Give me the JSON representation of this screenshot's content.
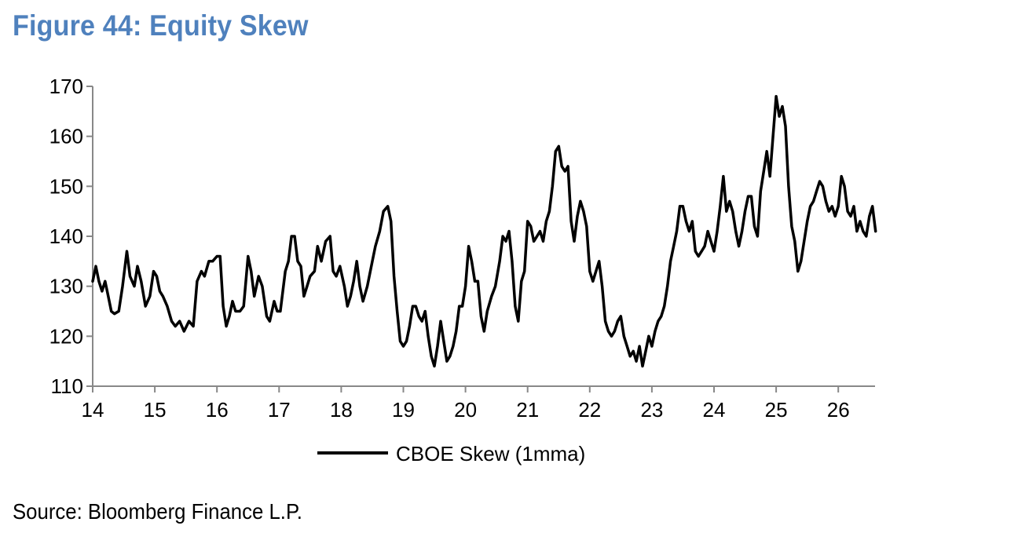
{
  "figure_title": "Figure 44: Equity Skew",
  "source_note": "Source: Bloomberg Finance L.P.",
  "chart_data": {
    "type": "line",
    "title": "",
    "xlabel": "",
    "ylabel": "",
    "xlim": [
      14,
      26.6
    ],
    "ylim": [
      110,
      170
    ],
    "x_ticks": [
      14,
      15,
      16,
      17,
      18,
      19,
      20,
      21,
      22,
      23,
      24,
      25,
      26
    ],
    "y_ticks": [
      110,
      120,
      130,
      140,
      150,
      160,
      170
    ],
    "grid": false,
    "legend_position": "bottom-center",
    "series": [
      {
        "name": "CBOE Skew (1mma)",
        "color": "#000000",
        "points": [
          [
            14.0,
            131
          ],
          [
            14.05,
            134
          ],
          [
            14.1,
            131
          ],
          [
            14.15,
            129
          ],
          [
            14.2,
            131
          ],
          [
            14.25,
            128
          ],
          [
            14.3,
            125
          ],
          [
            14.35,
            124.5
          ],
          [
            14.42,
            125
          ],
          [
            14.48,
            130
          ],
          [
            14.55,
            137
          ],
          [
            14.6,
            132
          ],
          [
            14.67,
            130
          ],
          [
            14.72,
            134
          ],
          [
            14.78,
            131
          ],
          [
            14.85,
            126
          ],
          [
            14.92,
            128
          ],
          [
            14.98,
            133
          ],
          [
            15.03,
            132
          ],
          [
            15.08,
            129
          ],
          [
            15.13,
            128
          ],
          [
            15.2,
            126
          ],
          [
            15.27,
            123
          ],
          [
            15.33,
            122
          ],
          [
            15.4,
            123
          ],
          [
            15.47,
            121
          ],
          [
            15.55,
            123
          ],
          [
            15.62,
            122
          ],
          [
            15.68,
            131
          ],
          [
            15.75,
            133
          ],
          [
            15.8,
            132
          ],
          [
            15.87,
            135
          ],
          [
            15.93,
            135
          ],
          [
            16.0,
            136
          ],
          [
            16.05,
            136
          ],
          [
            16.1,
            126
          ],
          [
            16.15,
            122
          ],
          [
            16.2,
            124
          ],
          [
            16.25,
            127
          ],
          [
            16.3,
            125
          ],
          [
            16.37,
            125
          ],
          [
            16.43,
            126
          ],
          [
            16.5,
            136
          ],
          [
            16.55,
            133
          ],
          [
            16.6,
            128
          ],
          [
            16.67,
            132
          ],
          [
            16.73,
            130
          ],
          [
            16.8,
            124
          ],
          [
            16.85,
            123
          ],
          [
            16.92,
            127
          ],
          [
            16.97,
            125
          ],
          [
            17.02,
            125
          ],
          [
            17.1,
            133
          ],
          [
            17.15,
            135
          ],
          [
            17.2,
            140
          ],
          [
            17.25,
            140
          ],
          [
            17.3,
            135
          ],
          [
            17.35,
            134
          ],
          [
            17.4,
            128
          ],
          [
            17.45,
            130
          ],
          [
            17.5,
            132
          ],
          [
            17.57,
            133
          ],
          [
            17.62,
            138
          ],
          [
            17.68,
            135
          ],
          [
            17.75,
            139
          ],
          [
            17.82,
            140
          ],
          [
            17.87,
            133
          ],
          [
            17.92,
            132
          ],
          [
            17.98,
            134
          ],
          [
            18.05,
            130
          ],
          [
            18.1,
            126
          ],
          [
            18.15,
            128
          ],
          [
            18.2,
            131
          ],
          [
            18.25,
            135
          ],
          [
            18.3,
            130
          ],
          [
            18.35,
            127
          ],
          [
            18.42,
            130
          ],
          [
            18.5,
            135
          ],
          [
            18.55,
            138
          ],
          [
            18.62,
            141
          ],
          [
            18.68,
            145
          ],
          [
            18.75,
            146
          ],
          [
            18.8,
            143
          ],
          [
            18.85,
            132
          ],
          [
            18.9,
            125
          ],
          [
            18.95,
            119
          ],
          [
            19.0,
            118
          ],
          [
            19.05,
            119
          ],
          [
            19.1,
            122
          ],
          [
            19.15,
            126
          ],
          [
            19.2,
            126
          ],
          [
            19.25,
            124
          ],
          [
            19.3,
            123
          ],
          [
            19.35,
            125
          ],
          [
            19.4,
            120
          ],
          [
            19.45,
            116
          ],
          [
            19.5,
            114
          ],
          [
            19.55,
            118
          ],
          [
            19.6,
            123
          ],
          [
            19.65,
            119
          ],
          [
            19.7,
            115
          ],
          [
            19.75,
            116
          ],
          [
            19.8,
            118
          ],
          [
            19.85,
            121
          ],
          [
            19.9,
            126
          ],
          [
            19.95,
            126
          ],
          [
            20.0,
            130
          ],
          [
            20.05,
            138
          ],
          [
            20.1,
            135
          ],
          [
            20.15,
            131
          ],
          [
            20.2,
            131
          ],
          [
            20.25,
            124
          ],
          [
            20.3,
            121
          ],
          [
            20.35,
            125
          ],
          [
            20.42,
            128
          ],
          [
            20.48,
            130
          ],
          [
            20.55,
            135
          ],
          [
            20.6,
            140
          ],
          [
            20.65,
            139
          ],
          [
            20.7,
            141
          ],
          [
            20.75,
            135
          ],
          [
            20.8,
            126
          ],
          [
            20.85,
            123
          ],
          [
            20.9,
            131
          ],
          [
            20.95,
            133
          ],
          [
            21.0,
            143
          ],
          [
            21.05,
            142
          ],
          [
            21.1,
            139
          ],
          [
            21.15,
            140
          ],
          [
            21.2,
            141
          ],
          [
            21.25,
            139
          ],
          [
            21.3,
            143
          ],
          [
            21.35,
            145
          ],
          [
            21.4,
            150
          ],
          [
            21.45,
            157
          ],
          [
            21.5,
            158
          ],
          [
            21.55,
            154
          ],
          [
            21.6,
            153
          ],
          [
            21.65,
            154
          ],
          [
            21.7,
            143
          ],
          [
            21.75,
            139
          ],
          [
            21.8,
            144
          ],
          [
            21.85,
            147
          ],
          [
            21.9,
            145
          ],
          [
            21.95,
            142
          ],
          [
            22.0,
            133
          ],
          [
            22.05,
            131
          ],
          [
            22.1,
            133
          ],
          [
            22.15,
            135
          ],
          [
            22.2,
            130
          ],
          [
            22.25,
            123
          ],
          [
            22.3,
            121
          ],
          [
            22.35,
            120
          ],
          [
            22.4,
            121
          ],
          [
            22.45,
            123
          ],
          [
            22.5,
            124
          ],
          [
            22.55,
            120
          ],
          [
            22.6,
            118
          ],
          [
            22.65,
            116
          ],
          [
            22.7,
            117
          ],
          [
            22.75,
            115
          ],
          [
            22.8,
            118
          ],
          [
            22.85,
            114
          ],
          [
            22.9,
            117
          ],
          [
            22.95,
            120
          ],
          [
            23.0,
            118
          ],
          [
            23.05,
            121
          ],
          [
            23.1,
            123
          ],
          [
            23.15,
            124
          ],
          [
            23.2,
            126
          ],
          [
            23.25,
            130
          ],
          [
            23.3,
            135
          ],
          [
            23.35,
            138
          ],
          [
            23.4,
            141
          ],
          [
            23.45,
            146
          ],
          [
            23.5,
            146
          ],
          [
            23.55,
            143
          ],
          [
            23.6,
            141
          ],
          [
            23.65,
            143
          ],
          [
            23.7,
            137
          ],
          [
            23.75,
            136
          ],
          [
            23.8,
            137
          ],
          [
            23.85,
            138
          ],
          [
            23.9,
            141
          ],
          [
            23.95,
            139
          ],
          [
            24.0,
            137
          ],
          [
            24.05,
            141
          ],
          [
            24.1,
            146
          ],
          [
            24.15,
            152
          ],
          [
            24.2,
            145
          ],
          [
            24.25,
            147
          ],
          [
            24.3,
            145
          ],
          [
            24.35,
            141
          ],
          [
            24.4,
            138
          ],
          [
            24.45,
            141
          ],
          [
            24.5,
            145
          ],
          [
            24.55,
            148
          ],
          [
            24.6,
            148
          ],
          [
            24.65,
            142
          ],
          [
            24.7,
            140
          ],
          [
            24.75,
            149
          ],
          [
            24.8,
            153
          ],
          [
            24.85,
            157
          ],
          [
            24.9,
            152
          ],
          [
            24.95,
            160
          ],
          [
            25.0,
            168
          ],
          [
            25.05,
            164
          ],
          [
            25.1,
            166
          ],
          [
            25.15,
            162
          ],
          [
            25.2,
            150
          ],
          [
            25.25,
            142
          ],
          [
            25.3,
            139
          ],
          [
            25.35,
            133
          ],
          [
            25.4,
            135
          ],
          [
            25.45,
            139
          ],
          [
            25.5,
            143
          ],
          [
            25.55,
            146
          ],
          [
            25.6,
            147
          ],
          [
            25.65,
            149
          ],
          [
            25.7,
            151
          ],
          [
            25.75,
            150
          ],
          [
            25.8,
            147
          ],
          [
            25.85,
            145
          ],
          [
            25.9,
            146
          ],
          [
            25.95,
            144
          ],
          [
            26.0,
            146
          ],
          [
            26.05,
            152
          ],
          [
            26.1,
            150
          ],
          [
            26.15,
            145
          ],
          [
            26.2,
            144
          ],
          [
            26.25,
            146
          ],
          [
            26.3,
            141
          ],
          [
            26.35,
            143
          ],
          [
            26.4,
            141
          ],
          [
            26.45,
            140
          ],
          [
            26.5,
            144
          ],
          [
            26.55,
            146
          ],
          [
            26.6,
            141
          ]
        ]
      }
    ]
  }
}
